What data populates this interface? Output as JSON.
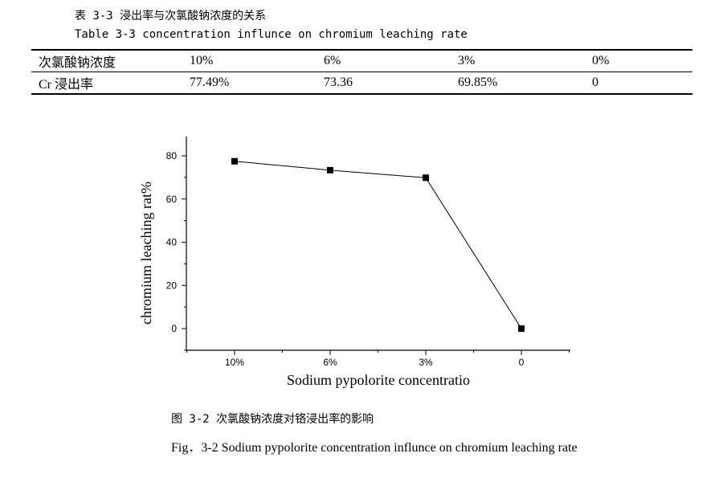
{
  "table_caption_cn": "表 3-3 浸出率与次氯酸钠浓度的关系",
  "table_caption_en": "Table 3-3  concentration influnce on chromium leaching rate",
  "table": {
    "row1": [
      "次氯酸钠浓度",
      "10%",
      "6%",
      "3%",
      "0%"
    ],
    "row2": [
      "Cr 浸出率",
      "77.49%",
      "73.36",
      "69.85%",
      "0"
    ]
  },
  "chart_data": {
    "type": "line",
    "categories": [
      "10%",
      "6%",
      "3%",
      "0"
    ],
    "values": [
      77.49,
      73.36,
      69.85,
      0
    ],
    "xlabel": "Sodium pypolorite concentratio",
    "ylabel": "chromium leaching rat%",
    "yticks": [
      0,
      20,
      40,
      60,
      80
    ],
    "ylim": [
      -10,
      90
    ],
    "grid": false,
    "marker": "square"
  },
  "figure_caption_cn": "图 3-2  次氯酸钠浓度对铬浸出率的影响",
  "figure_caption_en": "Fig．3-2   Sodium pypolorite concentration influnce on chromium leaching rate"
}
